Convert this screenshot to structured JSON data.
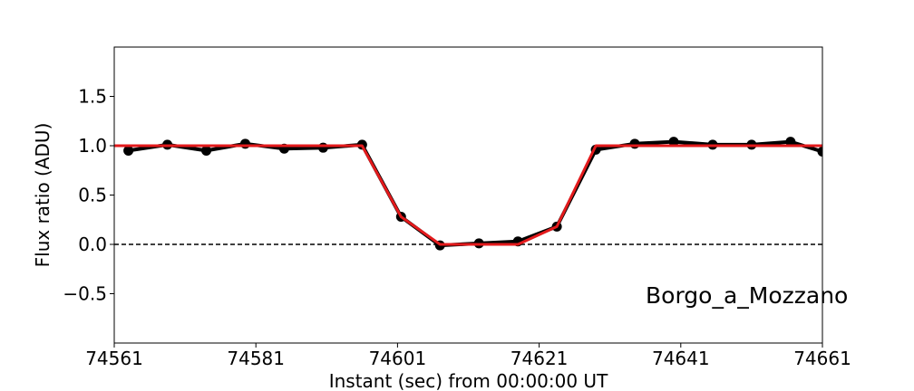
{
  "chart_data": {
    "type": "line",
    "title": "",
    "xlabel": "Instant (sec) from 00:00:00 UT",
    "ylabel": "Flux ratio (ADU)",
    "xlim": [
      74561,
      74661
    ],
    "ylim": [
      -1.0,
      2.0
    ],
    "xticks": [
      74561,
      74581,
      74601,
      74621,
      74641,
      74661
    ],
    "xtick_labels": [
      "74561",
      "74581",
      "74601",
      "74621",
      "74641",
      "74661"
    ],
    "yticks": [
      -0.5,
      0.0,
      0.5,
      1.0,
      1.5
    ],
    "ytick_labels": [
      "−0.5",
      "0.0",
      "0.5",
      "1.0",
      "1.5"
    ],
    "annotation": "Borgo_a_Mozzano",
    "reference_line": {
      "y": 0.0,
      "style": "dashed",
      "color": "#000000"
    },
    "series": [
      {
        "color": "#000000",
        "marker": "circle",
        "x": [
          74563.0,
          74568.5,
          74574.0,
          74579.5,
          74585.0,
          74590.5,
          74596.0,
          74601.5,
          74607.0,
          74612.5,
          74618.0,
          74623.5,
          74629.0,
          74634.5,
          74640.0,
          74645.5,
          74651.0,
          74656.5,
          74661.0
        ],
        "y": [
          0.95,
          1.01,
          0.95,
          1.02,
          0.97,
          0.98,
          1.01,
          0.28,
          -0.01,
          0.01,
          0.03,
          0.18,
          0.96,
          1.02,
          1.04,
          1.01,
          1.01,
          1.04,
          0.94
        ]
      },
      {
        "color": "#e31a1c",
        "marker": "none",
        "x": [
          74561.0,
          74596.0,
          74601.5,
          74607.0,
          74618.0,
          74623.5,
          74629.0,
          74661.0
        ],
        "y": [
          1.0,
          1.0,
          0.28,
          0.0,
          0.0,
          0.18,
          1.0,
          1.0
        ]
      }
    ]
  }
}
